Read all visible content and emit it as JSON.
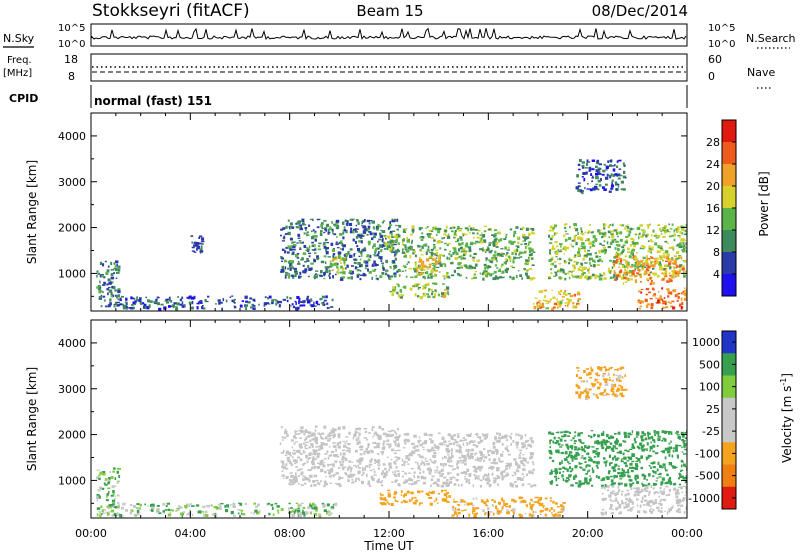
{
  "header": {
    "radar_title": "Stokkseyri (fitACF)",
    "beam_title": "Beam 15",
    "date_title": "08/Dec/2014"
  },
  "noise_panel": {
    "left_label": "N.Sky",
    "right_label": "N.Search",
    "ytick_top": "10^5",
    "ytick_bottom": "10^0"
  },
  "freq_panel": {
    "left_label_line1": "Freq.",
    "left_label_line2": "[MHz]",
    "left_tick_top": "18",
    "left_tick_bottom": "8",
    "right_tick_top": "60",
    "right_tick_bottom": "0",
    "right_label": "Nave"
  },
  "cpid_panel": {
    "label": "CPID",
    "program": "normal (fast) 151"
  },
  "xaxis": {
    "label": "Time UT",
    "tick_labels": [
      "00:00",
      "04:00",
      "08:00",
      "12:00",
      "16:00",
      "20:00",
      "00:00"
    ]
  },
  "colors": {
    "power_scale": [
      "#1f10f0",
      "#2a3aa8",
      "#3f8a5c",
      "#5bb546",
      "#d7d12b",
      "#f0a12a",
      "#ef5b1d",
      "#e01a10"
    ],
    "velocity_scale": [
      "#2235c8",
      "#36a04e",
      "#7fcc3c",
      "#c8c8c8",
      "#c8c8c8",
      "#f5a21d",
      "#f07f12",
      "#e01a10"
    ],
    "ground_scatter": "#c4c4c4"
  },
  "chart_data": [
    {
      "type": "heatmap",
      "name": "power",
      "ylabel": "Slant Range [km]",
      "xlabel": "Time UT",
      "xlim": [
        0,
        24
      ],
      "ylim": [
        180,
        4500
      ],
      "yticks": [
        1000,
        2000,
        3000,
        4000
      ],
      "colorbar": {
        "label": "Power [dB]",
        "min": 0,
        "max": 32,
        "ticks": [
          4,
          8,
          12,
          16,
          20,
          24,
          28
        ]
      },
      "regions": [
        {
          "t0": 0.2,
          "t1": 1.1,
          "r0": 250,
          "r1": 1300,
          "value": 9
        },
        {
          "t0": 1.0,
          "t1": 9.8,
          "r0": 250,
          "r1": 520,
          "value": 7
        },
        {
          "t0": 4.0,
          "t1": 4.5,
          "r0": 1450,
          "r1": 1850,
          "value": 6
        },
        {
          "t0": 7.6,
          "t1": 12.4,
          "r0": 900,
          "r1": 2200,
          "value": 9
        },
        {
          "t0": 9.6,
          "t1": 10.2,
          "r0": 1000,
          "r1": 1400,
          "value": 17
        },
        {
          "t0": 11.6,
          "t1": 12.4,
          "r0": 1550,
          "r1": 1850,
          "value": 14
        },
        {
          "t0": 12.5,
          "t1": 17.8,
          "r0": 900,
          "r1": 2050,
          "value": 13
        },
        {
          "t0": 13.0,
          "t1": 14.0,
          "r0": 1000,
          "r1": 1400,
          "value": 19
        },
        {
          "t0": 12.0,
          "t1": 14.4,
          "r0": 500,
          "r1": 800,
          "value": 16
        },
        {
          "t0": 17.8,
          "t1": 19.6,
          "r0": 250,
          "r1": 650,
          "value": 20
        },
        {
          "t0": 18.4,
          "t1": 24.0,
          "r0": 900,
          "r1": 2100,
          "value": 15
        },
        {
          "t0": 21.0,
          "t1": 23.8,
          "r0": 800,
          "r1": 1400,
          "value": 23
        },
        {
          "t0": 22.0,
          "t1": 24.0,
          "r0": 250,
          "r1": 700,
          "value": 25
        },
        {
          "t0": 19.5,
          "t1": 21.5,
          "r0": 2800,
          "r1": 3500,
          "value": 7
        }
      ]
    },
    {
      "type": "heatmap",
      "name": "velocity",
      "ylabel": "Slant Range [km]",
      "xlabel": "Time UT",
      "xlim": [
        0,
        24
      ],
      "ylim": [
        180,
        4500
      ],
      "yticks": [
        1000,
        2000,
        3000,
        4000
      ],
      "colorbar": {
        "label": "Velocity [m s^-1]",
        "ticks": [
          "1000",
          "500",
          "100",
          "25",
          "-25",
          "-100",
          "-500",
          "-1000"
        ]
      },
      "regions": [
        {
          "t0": 0.2,
          "t1": 1.1,
          "r0": 250,
          "r1": 1300,
          "value": 80
        },
        {
          "t0": 1.0,
          "t1": 9.8,
          "r0": 250,
          "r1": 520,
          "value": 60
        },
        {
          "t0": 7.6,
          "t1": 12.4,
          "r0": 900,
          "r1": 2200,
          "value": 0,
          "ground_scatter": true
        },
        {
          "t0": 11.6,
          "t1": 14.4,
          "r0": 500,
          "r1": 800,
          "value": -300
        },
        {
          "t0": 12.5,
          "t1": 17.8,
          "r0": 900,
          "r1": 2050,
          "value": 0,
          "ground_scatter": true
        },
        {
          "t0": 14.5,
          "t1": 19.0,
          "r0": 250,
          "r1": 650,
          "value": -200
        },
        {
          "t0": 18.4,
          "t1": 24.0,
          "r0": 900,
          "r1": 2100,
          "value": 300
        },
        {
          "t0": 20.5,
          "t1": 24.0,
          "r0": 300,
          "r1": 900,
          "value": 0,
          "ground_scatter": true
        },
        {
          "t0": 19.5,
          "t1": 21.5,
          "r0": 2800,
          "r1": 3500,
          "value": -200
        }
      ]
    }
  ]
}
